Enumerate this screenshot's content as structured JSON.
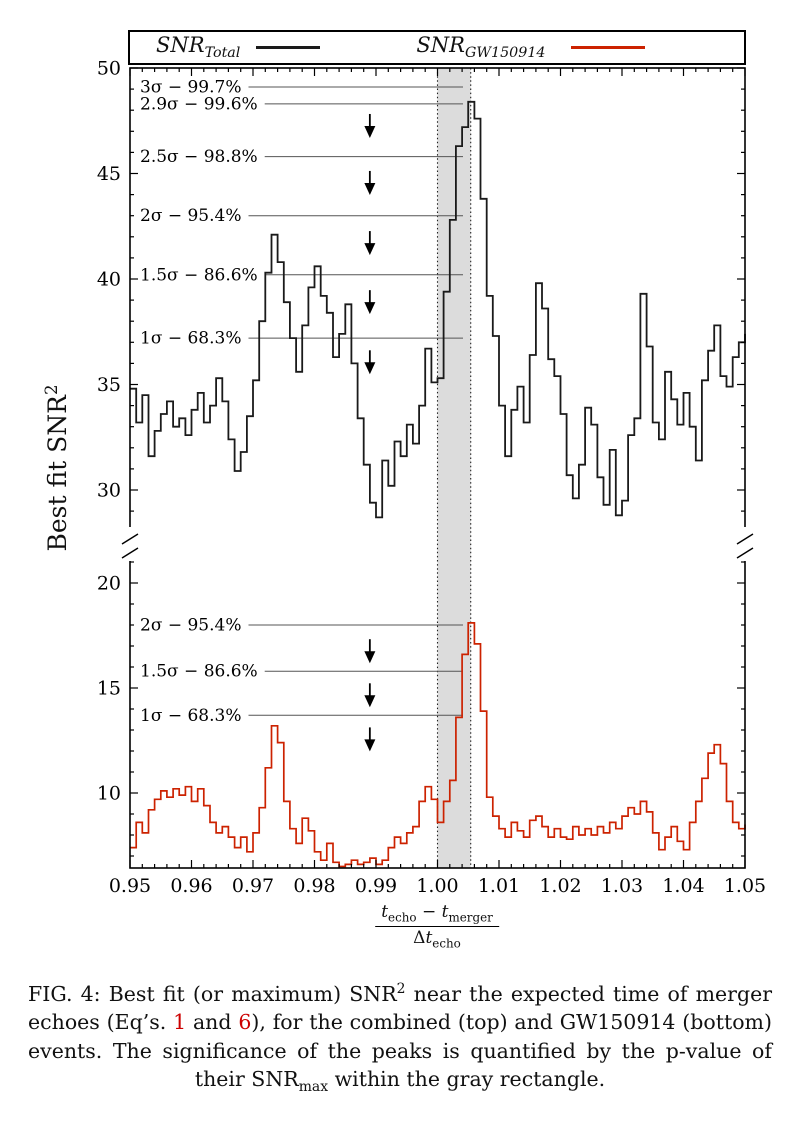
{
  "figure": {
    "legend": {
      "entries": [
        {
          "name": "SNR",
          "sub": "Total",
          "color": "#1a1a1a"
        },
        {
          "name": "SNR",
          "sub": "GW150914",
          "color": "#cc2200"
        }
      ]
    },
    "ylabel": {
      "text": "Best fit SNR",
      "sup": "2"
    },
    "xlabel": {
      "num": [
        {
          "t": "t",
          "sub": "echo"
        },
        {
          "t": " − ",
          "plain": true
        },
        {
          "t": "t",
          "sub": "merger"
        }
      ],
      "den": [
        {
          "t": "Δ",
          "plain": true
        },
        {
          "t": "t",
          "sub": "echo"
        }
      ]
    }
  },
  "chart_data": {
    "type": "line",
    "title": "",
    "ylabel": "Best fit SNR²",
    "xlabel": "(t_echo − t_merger) / Δt_echo",
    "x_range": [
      0.95,
      1.05
    ],
    "x_start": 0.95,
    "x_step": 0.001,
    "grid": false,
    "legend_position": "top",
    "broken_y_axis": true,
    "y_top_range": [
      28.4,
      50
    ],
    "y_bottom_range": [
      6.4,
      21
    ],
    "colors": {
      "band": "#dcdcdc",
      "curve_total": "#1a1a1a",
      "curve_gw": "#cc2200"
    },
    "x_ticks": [
      {
        "v": 0.95,
        "label": "0.95"
      },
      {
        "v": 0.96,
        "label": "0.96"
      },
      {
        "v": 0.97,
        "label": "0.97"
      },
      {
        "v": 0.98,
        "label": "0.98"
      },
      {
        "v": 0.99,
        "label": "0.99"
      },
      {
        "v": 1.0,
        "label": "1.00"
      },
      {
        "v": 1.01,
        "label": "1.01"
      },
      {
        "v": 1.02,
        "label": "1.02"
      },
      {
        "v": 1.03,
        "label": "1.03"
      },
      {
        "v": 1.04,
        "label": "1.04"
      },
      {
        "v": 1.05,
        "label": "1.05"
      }
    ],
    "y_ticks_top": [
      {
        "v": 50,
        "label": "50"
      },
      {
        "v": 45,
        "label": "45"
      },
      {
        "v": 40,
        "label": "40"
      },
      {
        "v": 35,
        "label": "35"
      },
      {
        "v": 30,
        "label": "30"
      }
    ],
    "y_ticks_bottom": [
      {
        "v": 20,
        "label": "20"
      },
      {
        "v": 15,
        "label": "15"
      },
      {
        "v": 10,
        "label": "10"
      }
    ],
    "gray_band": {
      "x0": 1.0,
      "x1": 1.0054
    },
    "significance_top": [
      {
        "label": "3σ − 99.7%",
        "y": 49.1
      },
      {
        "label": "2.9σ − 99.6%",
        "y": 48.3
      },
      {
        "label": "2.5σ − 98.8%",
        "y": 45.8
      },
      {
        "label": "2σ − 95.4%",
        "y": 43.0
      },
      {
        "label": "1.5σ − 86.6%",
        "y": 40.2
      },
      {
        "label": "1σ − 68.3%",
        "y": 37.2
      }
    ],
    "significance_bottom": [
      {
        "label": "2σ − 95.4%",
        "y": 18.0
      },
      {
        "label": "1.5σ − 86.6%",
        "y": 15.8
      },
      {
        "label": "1σ − 68.3%",
        "y": 13.7
      }
    ],
    "arrows": {
      "x": 0.989,
      "top_y": [
        47.3,
        44.6,
        41.75,
        38.95,
        36.1
      ],
      "bottom_y": [
        16.8,
        14.7,
        12.6
      ]
    },
    "series": [
      {
        "name": "SNR_Total",
        "color": "#1a1a1a",
        "panel": "top",
        "values": [
          34.8,
          33.2,
          34.5,
          31.6,
          32.8,
          33.6,
          34.2,
          33.0,
          33.4,
          32.6,
          33.8,
          34.6,
          33.2,
          34.0,
          35.3,
          34.2,
          32.4,
          30.9,
          31.8,
          33.5,
          35.2,
          38.0,
          40.3,
          42.1,
          40.8,
          38.9,
          37.2,
          35.6,
          37.8,
          39.6,
          40.6,
          39.2,
          38.4,
          36.3,
          37.4,
          38.8,
          36.0,
          33.4,
          31.2,
          29.4,
          28.7,
          31.4,
          30.2,
          32.3,
          31.6,
          33.1,
          32.2,
          34.0,
          36.7,
          35.1,
          35.3,
          39.4,
          42.8,
          46.3,
          47.2,
          48.4,
          47.6,
          43.8,
          39.2,
          37.3,
          34.0,
          31.6,
          33.8,
          34.9,
          33.2,
          36.4,
          39.8,
          38.6,
          36.2,
          35.4,
          33.6,
          30.7,
          29.6,
          31.2,
          33.9,
          33.1,
          30.6,
          29.3,
          31.9,
          28.8,
          29.5,
          32.6,
          33.4,
          39.3,
          36.8,
          33.2,
          32.4,
          35.6,
          34.3,
          33.1,
          34.6,
          33.0,
          31.4,
          35.2,
          36.6,
          37.8,
          35.4,
          34.9,
          36.3,
          37.0,
          37.4
        ]
      },
      {
        "name": "SNR_GW150914",
        "color": "#cc2200",
        "panel": "bottom",
        "values": [
          7.4,
          8.6,
          8.1,
          9.2,
          9.7,
          10.1,
          9.8,
          10.2,
          9.9,
          10.3,
          9.6,
          10.2,
          9.4,
          8.6,
          8.1,
          8.4,
          7.9,
          7.4,
          7.9,
          7.2,
          8.1,
          9.3,
          11.2,
          13.2,
          12.4,
          9.6,
          8.3,
          7.6,
          8.8,
          8.2,
          7.2,
          6.8,
          7.6,
          6.7,
          6.5,
          6.6,
          6.8,
          6.6,
          6.7,
          6.9,
          6.6,
          6.8,
          7.4,
          7.9,
          7.6,
          8.1,
          8.4,
          9.6,
          10.3,
          9.7,
          8.6,
          9.6,
          10.6,
          13.6,
          16.6,
          18.1,
          17.1,
          13.9,
          9.8,
          8.9,
          8.3,
          7.9,
          8.6,
          8.2,
          7.9,
          8.7,
          8.9,
          8.4,
          7.9,
          8.3,
          7.9,
          7.8,
          8.4,
          8.0,
          8.3,
          8.0,
          8.4,
          8.1,
          8.6,
          8.3,
          8.9,
          9.3,
          9.0,
          9.6,
          9.1,
          8.1,
          7.3,
          7.9,
          8.4,
          7.7,
          7.3,
          8.6,
          9.6,
          10.7,
          11.9,
          12.3,
          11.4,
          9.6,
          8.6,
          8.3,
          8.5
        ]
      }
    ]
  },
  "caption": {
    "runs": [
      {
        "t": "FIG. 4: Best fit (or maximum) SNR"
      },
      {
        "t": "2",
        "sup": true
      },
      {
        "t": " near the expected time of merger echoes (Eq’s. "
      },
      {
        "t": "1",
        "link": true
      },
      {
        "t": " and "
      },
      {
        "t": "6",
        "link": true
      },
      {
        "t": "), for the combined (top) and GW150914 (bottom) events. The significance of the peaks is quantified by the p-value of their SNR"
      },
      {
        "t": "max",
        "sub": true
      },
      {
        "t": " within the gray rectangle."
      }
    ]
  }
}
